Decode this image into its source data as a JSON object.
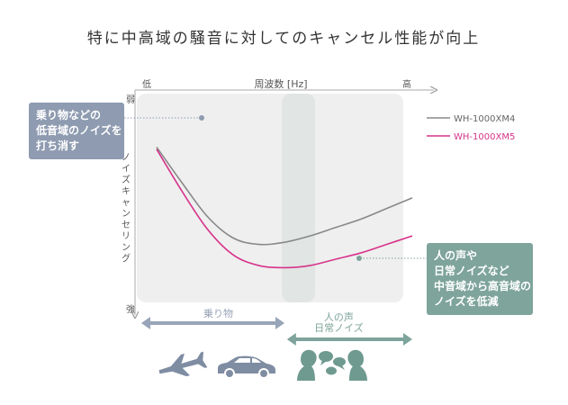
{
  "chart_data": {
    "type": "line",
    "title": "特に中高域の騒音に対してのキャンセル性能が向上",
    "xlabel": "周波数 [Hz]",
    "x_low_label": "低",
    "x_high_label": "高",
    "ylabel": "ノイズキャンセリング",
    "y_weak_label": "弱",
    "y_strong_label": "強",
    "xlim": [
      0,
      100
    ],
    "ylim": [
      0,
      100
    ],
    "x": [
      0,
      10,
      20,
      30,
      40,
      50,
      60,
      70,
      80,
      90,
      100
    ],
    "series": [
      {
        "name": "WH-1000XM4",
        "color": "#888888",
        "values": [
          73,
          56,
          40,
          30,
          27,
          28,
          31,
          35,
          39,
          44,
          49
        ]
      },
      {
        "name": "WH-1000XM5",
        "color": "#d6338a",
        "values": [
          72,
          52,
          34,
          22,
          17,
          16,
          17,
          20,
          23,
          27,
          31
        ]
      }
    ],
    "highlight_band_x": [
      49,
      62
    ],
    "ranges": [
      {
        "label": "乗り物",
        "x_start": -6,
        "x_end": 50,
        "color": "#98a4b8"
      },
      {
        "label_lines": [
          "人の声",
          "日常ノイズ"
        ],
        "x_start": 51,
        "x_end": 100,
        "color": "#7ea49b"
      }
    ]
  },
  "callouts": {
    "left": {
      "lines": [
        "乗り物などの",
        "低音域のノイズを",
        "打ち消す"
      ],
      "color": "#8e9bb0"
    },
    "right": {
      "lines": [
        "人の声や",
        "日常ノイズなど",
        "中音域から高音域の",
        "ノイズを低減"
      ],
      "color": "#7ea49b"
    }
  },
  "icons": [
    "airplane-icon",
    "car-icon",
    "people-talking-icon"
  ]
}
